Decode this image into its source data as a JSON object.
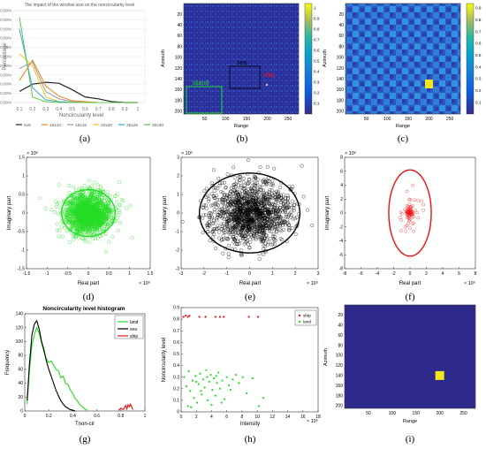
{
  "captions": [
    "(a)",
    "(b)",
    "(c)",
    "(d)",
    "(e)",
    "(f)",
    "(g)",
    "(h)",
    "(i)"
  ],
  "colors": {
    "line_5x5": "#222222",
    "line_10x10": "#e8811f",
    "line_15x15": "#9a9a9a",
    "line_20x20": "#f0c419",
    "line_25x25": "#3aa4dc",
    "line_30x30": "#5cc84a",
    "land": "#22dd22",
    "sea": "#000000",
    "ship": "#ee1111",
    "sar_bg": "#2e2a8c",
    "target": "#f5e51b"
  },
  "chart_data": [
    {
      "id": "a",
      "type": "line",
      "title": "The impact of the window size on the noncircularity level",
      "xlabel": "Noncircularity level",
      "ylabel": "Percentage",
      "x": [
        0.1,
        0.2,
        0.3,
        0.4,
        0.5,
        0.6,
        0.7,
        0.8,
        0.9,
        1
      ],
      "xticks": [
        "0.1",
        "0.2",
        "0.3",
        "0.4",
        "0.5",
        "0.6",
        "0.7",
        "0.8",
        "0.9",
        "1"
      ],
      "yticks": [
        "0.00%",
        "10.00%",
        "20.00%",
        "30.00%",
        "40.00%",
        "50.00%",
        "60.00%",
        "70.00%",
        "80.00%",
        "90.00%",
        "100.00%"
      ],
      "ylim": [
        0,
        100
      ],
      "legend": [
        "5x5",
        "10x10",
        "15x15",
        "20x20",
        "25x25",
        "30x30"
      ],
      "series": [
        {
          "name": "5x5",
          "values": [
            12,
            20,
            22,
            21,
            14,
            6,
            4,
            1,
            0,
            0
          ]
        },
        {
          "name": "10x10",
          "values": [
            24,
            46,
            18,
            7,
            2,
            1,
            0,
            0,
            0,
            0
          ]
        },
        {
          "name": "15x15",
          "values": [
            37,
            44,
            12,
            4,
            1,
            0,
            0,
            0,
            0,
            0
          ]
        },
        {
          "name": "20x20",
          "values": [
            53,
            40,
            6,
            1,
            0,
            0,
            0,
            0,
            0,
            0
          ]
        },
        {
          "name": "25x25",
          "values": [
            80,
            16,
            3,
            1,
            0,
            0,
            0,
            0,
            0,
            0
          ]
        },
        {
          "name": "30x30",
          "values": [
            93,
            6,
            1,
            0,
            0,
            0,
            0,
            0,
            0,
            0
          ]
        }
      ]
    },
    {
      "id": "b",
      "type": "heatmap",
      "xlabel": "Range",
      "ylabel": "Azimuth",
      "xticks": [
        "50",
        "100",
        "150",
        "200",
        "250"
      ],
      "yticks": [
        "20",
        "40",
        "60",
        "80",
        "100",
        "120",
        "140",
        "160",
        "180",
        "200"
      ],
      "colorbar": [
        "0.1",
        "0.2",
        "0.3",
        "0.4",
        "0.5",
        "0.6",
        "0.7",
        "0.8",
        "0.9",
        "1"
      ],
      "annotations": {
        "island": "island",
        "sea": "sea",
        "ship": "ship"
      }
    },
    {
      "id": "c",
      "type": "heatmap",
      "xlabel": "Range",
      "ylabel": "Azimuth",
      "xticks": [
        "50",
        "100",
        "150",
        "200",
        "250"
      ],
      "yticks": [
        "20",
        "40",
        "60",
        "80",
        "100",
        "120",
        "140",
        "160",
        "180",
        "200"
      ],
      "colorbar": [
        "0.1",
        "0.2",
        "0.3",
        "0.4",
        "0.5",
        "0.6",
        "0.7",
        "0.8",
        "0.9"
      ]
    },
    {
      "id": "d",
      "type": "scatter",
      "xlabel": "Real part",
      "ylabel": "Imaginary part",
      "x_exponent": "× 10⁶",
      "y_exponent": "× 10⁶",
      "xticks": [
        "-1.5",
        "-1",
        "-0.5",
        "0",
        "0.5",
        "1",
        "1.5"
      ],
      "yticks": [
        "-1.5",
        "-1",
        "-0.5",
        "0",
        "0.5",
        "1",
        "1.5"
      ],
      "xlim": [
        -1.5,
        1.5
      ],
      "ylim": [
        -1.5,
        1.5
      ],
      "ellipse": {
        "cx": 0,
        "cy": 0,
        "rx": 0.65,
        "ry": 0.63
      },
      "cloud": {
        "count": 1600,
        "rx": 0.52,
        "ry": 0.5
      }
    },
    {
      "id": "e",
      "type": "scatter",
      "xlabel": "Real part",
      "ylabel": "Imaginary part",
      "x_exponent": "× 10⁵",
      "y_exponent": "× 10⁵",
      "xticks": [
        "-3",
        "-2",
        "-1",
        "0",
        "1",
        "2",
        "3"
      ],
      "yticks": [
        "-3",
        "-2",
        "-1",
        "0",
        "1",
        "2",
        "3"
      ],
      "xlim": [
        -3,
        3
      ],
      "ylim": [
        -3,
        3
      ],
      "ellipse": {
        "cx": 0,
        "cy": 0,
        "rx": 2.2,
        "ry": 2.15
      },
      "cloud": {
        "count": 1400,
        "rx": 1.6,
        "ry": 1.55
      }
    },
    {
      "id": "f",
      "type": "scatter",
      "xlabel": "Real part",
      "ylabel": "Imaginary part",
      "x_exponent": "× 10⁵",
      "y_exponent": "× 10⁶",
      "xticks": [
        "-8",
        "-6",
        "-4",
        "-2",
        "0",
        "2",
        "4",
        "6",
        "8"
      ],
      "yticks": [
        "-8",
        "-6",
        "-4",
        "-2",
        "0",
        "2",
        "4",
        "6",
        "8"
      ],
      "xlim": [
        -8,
        8
      ],
      "ylim": [
        -8,
        8
      ],
      "ellipse": {
        "cx": 0,
        "cy": 0,
        "rx": 2.6,
        "ry": 6.2
      },
      "cloud": {
        "count": 90,
        "rx": 1.1,
        "ry": 2.6
      }
    },
    {
      "id": "g",
      "type": "line",
      "title": "Noncircularity level histogram",
      "xlabel": "Tnon-cir",
      "ylabel": "Frequency",
      "xticks": [
        "0",
        "0.2",
        "0.4",
        "0.6",
        "0.8",
        "1"
      ],
      "yticks": [
        "0",
        "20",
        "40",
        "60",
        "80",
        "100",
        "120",
        "140"
      ],
      "xlim": [
        0,
        1
      ],
      "ylim": [
        0,
        140
      ],
      "legend": [
        "land",
        "sea",
        "ship"
      ],
      "series": [
        {
          "name": "land",
          "x": [
            0.02,
            0.04,
            0.06,
            0.08,
            0.1,
            0.12,
            0.14,
            0.16,
            0.18,
            0.2,
            0.22,
            0.24,
            0.26,
            0.28,
            0.3,
            0.32,
            0.34,
            0.36,
            0.38,
            0.4,
            0.42,
            0.44,
            0.46,
            0.48,
            0.5,
            0.52
          ],
          "values": [
            10,
            60,
            95,
            110,
            120,
            112,
            98,
            85,
            75,
            70,
            72,
            66,
            60,
            58,
            48,
            50,
            40,
            38,
            30,
            25,
            18,
            14,
            9,
            6,
            3,
            1
          ]
        },
        {
          "name": "sea",
          "x": [
            0.02,
            0.04,
            0.06,
            0.08,
            0.1,
            0.12,
            0.14,
            0.16,
            0.18,
            0.2,
            0.22,
            0.24,
            0.26,
            0.28,
            0.3,
            0.32,
            0.34,
            0.36,
            0.38,
            0.4,
            0.42
          ],
          "values": [
            15,
            70,
            110,
            125,
            130,
            118,
            100,
            88,
            72,
            60,
            50,
            40,
            30,
            22,
            15,
            10,
            6,
            4,
            2,
            1,
            0
          ]
        },
        {
          "name": "ship",
          "x": [
            0.78,
            0.8,
            0.82,
            0.84,
            0.85,
            0.86,
            0.87,
            0.88,
            0.9
          ],
          "values": [
            1,
            4,
            2,
            8,
            3,
            9,
            6,
            10,
            2
          ]
        }
      ]
    },
    {
      "id": "h",
      "type": "scatter",
      "xlabel": "Intensity",
      "ylabel": "Noncircularity level",
      "x_exponent": "× 10⁵",
      "xticks": [
        "0",
        "2",
        "4",
        "6",
        "8",
        "10",
        "12",
        "14",
        "16",
        "18"
      ],
      "yticks": [
        "0",
        "0.1",
        "0.2",
        "0.3",
        "0.4",
        "0.5",
        "0.6",
        "0.7",
        "0.8",
        "0.9"
      ],
      "xlim": [
        0,
        18
      ],
      "ylim": [
        0,
        0.9
      ],
      "legend": [
        "ship",
        "land"
      ],
      "series": [
        {
          "name": "ship",
          "points": [
            [
              0.3,
              0.82
            ],
            [
              0.6,
              0.83
            ],
            [
              0.9,
              0.82
            ],
            [
              1.1,
              0.83
            ],
            [
              2.4,
              0.82
            ],
            [
              3.2,
              0.82
            ],
            [
              4.5,
              0.82
            ],
            [
              5.1,
              0.82
            ],
            [
              5.6,
              0.82
            ],
            [
              8.9,
              0.82
            ],
            [
              10.1,
              0.82
            ]
          ]
        },
        {
          "name": "land",
          "points": [
            [
              0.4,
              0.3
            ],
            [
              0.7,
              0.22
            ],
            [
              1.0,
              0.35
            ],
            [
              1.2,
              0.18
            ],
            [
              1.5,
              0.27
            ],
            [
              1.7,
              0.12
            ],
            [
              1.9,
              0.31
            ],
            [
              2.1,
              0.08
            ],
            [
              2.3,
              0.24
            ],
            [
              2.5,
              0.33
            ],
            [
              2.7,
              0.15
            ],
            [
              2.9,
              0.28
            ],
            [
              3.1,
              0.21
            ],
            [
              3.3,
              0.36
            ],
            [
              3.5,
              0.1
            ],
            [
              3.7,
              0.26
            ],
            [
              3.9,
              0.32
            ],
            [
              4.1,
              0.19
            ],
            [
              4.3,
              0.29
            ],
            [
              4.5,
              0.14
            ],
            [
              4.7,
              0.25
            ],
            [
              4.9,
              0.34
            ],
            [
              5.1,
              0.2
            ],
            [
              5.4,
              0.27
            ],
            [
              5.7,
              0.11
            ],
            [
              6.0,
              0.3
            ],
            [
              6.3,
              0.23
            ],
            [
              6.8,
              0.28
            ],
            [
              7.2,
              0.32
            ],
            [
              7.6,
              0.25
            ],
            [
              8.1,
              0.3
            ],
            [
              8.6,
              0.16
            ],
            [
              9.4,
              0.29
            ],
            [
              10.2,
              0.05
            ],
            [
              10.8,
              0.12
            ],
            [
              0.9,
              0.05
            ],
            [
              1.3,
              0.04
            ],
            [
              2.0,
              0.26
            ],
            [
              2.6,
              0.18
            ],
            [
              3.4,
              0.3
            ],
            [
              4.0,
              0.06
            ],
            [
              4.6,
              0.31
            ],
            [
              5.3,
              0.08
            ],
            [
              6.5,
              0.19
            ]
          ]
        }
      ]
    },
    {
      "id": "i",
      "type": "heatmap",
      "xlabel": "Range",
      "ylabel": "Azimuth",
      "xticks": [
        "50",
        "100",
        "150",
        "200",
        "250"
      ],
      "yticks": [
        "20",
        "40",
        "60",
        "80",
        "100",
        "120",
        "140",
        "160",
        "180",
        "200"
      ],
      "target_center": [
        200,
        140
      ]
    }
  ]
}
